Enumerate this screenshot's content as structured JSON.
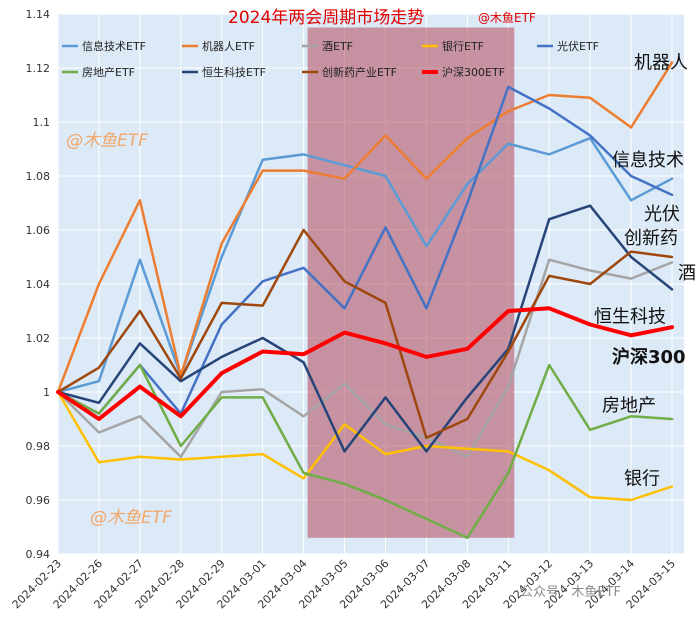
{
  "chart_data": {
    "type": "line",
    "title": "2024年两会周期市场走势",
    "subtitle": "@木鱼ETF",
    "categories": [
      "2024-02-23",
      "2024-02-26",
      "2024-02-27",
      "2024-02-28",
      "2024-02-29",
      "2024-03-01",
      "2024-03-04",
      "2024-03-05",
      "2024-03-06",
      "2024-03-07",
      "2024-03-08",
      "2024-03-11",
      "2024-03-12",
      "2024-03-13",
      "2024-03-14",
      "2024-03-15"
    ],
    "ylim": [
      0.94,
      1.14
    ],
    "yticks": [
      0.94,
      0.96,
      0.98,
      1,
      1.02,
      1.04,
      1.06,
      1.08,
      1.1,
      1.12,
      1.14
    ],
    "grid": true,
    "legend_position": "top",
    "highlight_range": [
      "2024-03-04",
      "2024-03-11"
    ],
    "highlight_color": "#b5495b",
    "series": [
      {
        "name": "信息技术ETF",
        "color": "#5b9bd5",
        "width": 2.5,
        "end_label": "信息技术",
        "values": [
          1.0,
          1.004,
          1.049,
          1.006,
          1.05,
          1.086,
          1.088,
          1.084,
          1.08,
          1.054,
          1.077,
          1.092,
          1.088,
          1.094,
          1.071,
          1.079
        ]
      },
      {
        "name": "机器人ETF",
        "color": "#ed7d31",
        "width": 2.5,
        "end_label": "机器人",
        "values": [
          1.0,
          1.04,
          1.071,
          1.006,
          1.055,
          1.082,
          1.082,
          1.079,
          1.095,
          1.079,
          1.094,
          1.104,
          1.11,
          1.109,
          1.098,
          1.122
        ]
      },
      {
        "name": "酒ETF",
        "color": "#a5a5a5",
        "width": 2.5,
        "end_label": "酒",
        "values": [
          1.0,
          0.985,
          0.991,
          0.976,
          1.0,
          1.001,
          0.991,
          1.003,
          0.988,
          0.983,
          0.976,
          1.002,
          1.049,
          1.045,
          1.042,
          1.048
        ]
      },
      {
        "name": "银行ETF",
        "color": "#ffc000",
        "width": 2.5,
        "end_label": "银行",
        "values": [
          1.0,
          0.974,
          0.976,
          0.975,
          0.976,
          0.977,
          0.968,
          0.988,
          0.977,
          0.98,
          0.979,
          0.978,
          0.971,
          0.961,
          0.96,
          0.965
        ]
      },
      {
        "name": "光伏ETF",
        "color": "#4472c4",
        "width": 2.5,
        "end_label": "光伏",
        "values": [
          1.0,
          0.992,
          1.01,
          0.992,
          1.025,
          1.041,
          1.046,
          1.031,
          1.061,
          1.031,
          1.07,
          1.113,
          1.105,
          1.095,
          1.08,
          1.073
        ]
      },
      {
        "name": "房地产ETF",
        "color": "#70ad47",
        "width": 2.5,
        "end_label": "房地产",
        "values": [
          1.0,
          0.992,
          1.01,
          0.98,
          0.998,
          0.998,
          0.97,
          0.966,
          0.96,
          0.953,
          0.946,
          0.97,
          1.01,
          0.986,
          0.991,
          0.99
        ]
      },
      {
        "name": "恒生科技ETF",
        "color": "#264478",
        "width": 2.5,
        "end_label": "恒生科技",
        "values": [
          1.0,
          0.996,
          1.018,
          1.004,
          1.013,
          1.02,
          1.011,
          0.978,
          0.998,
          0.978,
          0.998,
          1.016,
          1.064,
          1.069,
          1.05,
          1.038
        ]
      },
      {
        "name": "创新药产业ETF",
        "color": "#9e480e",
        "width": 2.5,
        "end_label": "创新药",
        "values": [
          1.0,
          1.009,
          1.03,
          1.005,
          1.033,
          1.032,
          1.06,
          1.041,
          1.033,
          0.983,
          0.99,
          1.015,
          1.043,
          1.04,
          1.052,
          1.05
        ]
      },
      {
        "name": "沪深300ETF",
        "color": "#ff0000",
        "width": 4,
        "end_label": "沪深300",
        "values": [
          1.0,
          0.99,
          1.002,
          0.991,
          1.007,
          1.015,
          1.014,
          1.022,
          1.018,
          1.013,
          1.016,
          1.03,
          1.031,
          1.025,
          1.021,
          1.024
        ]
      }
    ]
  },
  "end_labels": {
    "机器人": {
      "y": 1.122,
      "color": "#111111",
      "bold": false
    },
    "信息技术": {
      "y": 1.086,
      "color": "#111111",
      "bold": false
    },
    "光伏": {
      "y": 1.066,
      "color": "#111111",
      "bold": false
    },
    "创新药": {
      "y": 1.057,
      "color": "#111111",
      "bold": false
    },
    "酒": {
      "y": 1.044,
      "color": "#111111",
      "bold": false
    },
    "恒生科技": {
      "y": 1.028,
      "color": "#111111",
      "bold": false
    },
    "沪深300": {
      "y": 1.013,
      "color": "#ff0000",
      "bold": true
    },
    "房地产": {
      "y": 0.995,
      "color": "#111111",
      "bold": false
    },
    "银行": {
      "y": 0.968,
      "color": "#111111",
      "bold": false
    }
  },
  "watermarks": {
    "top": "@木鱼ETF",
    "bottom": "@木鱼ETF",
    "footer": "公众号 · 木鱼ETF"
  },
  "colors": {
    "plot_background": "#dce9f6",
    "grid": "#ffffff"
  }
}
